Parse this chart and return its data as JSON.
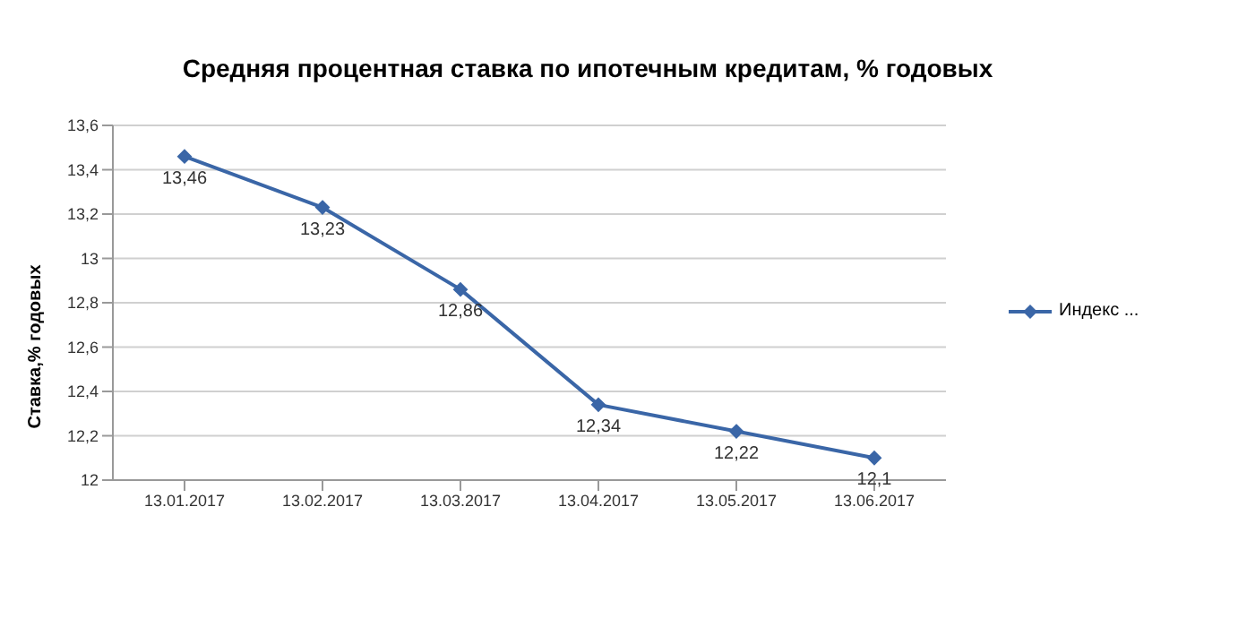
{
  "chart_data": {
    "type": "line",
    "title": "Средняя  процентная  ставка по ипотечным кредитам, % годовых",
    "ylabel": "Ставка,% годовых",
    "categories": [
      "13.01.2017",
      "13.02.2017",
      "13.03.2017",
      "13.04.2017",
      "13.05.2017",
      "13.06.2017"
    ],
    "series": [
      {
        "name": "Индекс ...",
        "color": "#3a66a7",
        "values": [
          13.46,
          13.23,
          12.86,
          12.34,
          12.22,
          12.1
        ],
        "value_labels": [
          "13,46",
          "13,23",
          "12,86",
          "12,34",
          "12,22",
          "12,1"
        ]
      }
    ],
    "ylim": [
      12,
      13.6
    ],
    "yticks": [
      12,
      {
        "value": 12.2,
        "label": "12,2"
      },
      {
        "value": 12.4,
        "label": "12,4"
      },
      {
        "value": 12.6,
        "label": "12,6"
      },
      {
        "value": 12.8,
        "label": "12,8"
      },
      13,
      {
        "value": 13.2,
        "label": "13,2"
      },
      {
        "value": 13.4,
        "label": "13,4"
      },
      {
        "value": 13.6,
        "label": "13,6"
      }
    ],
    "grid": "y",
    "legend": "right",
    "marker": "diamond",
    "line_style": "solid"
  }
}
